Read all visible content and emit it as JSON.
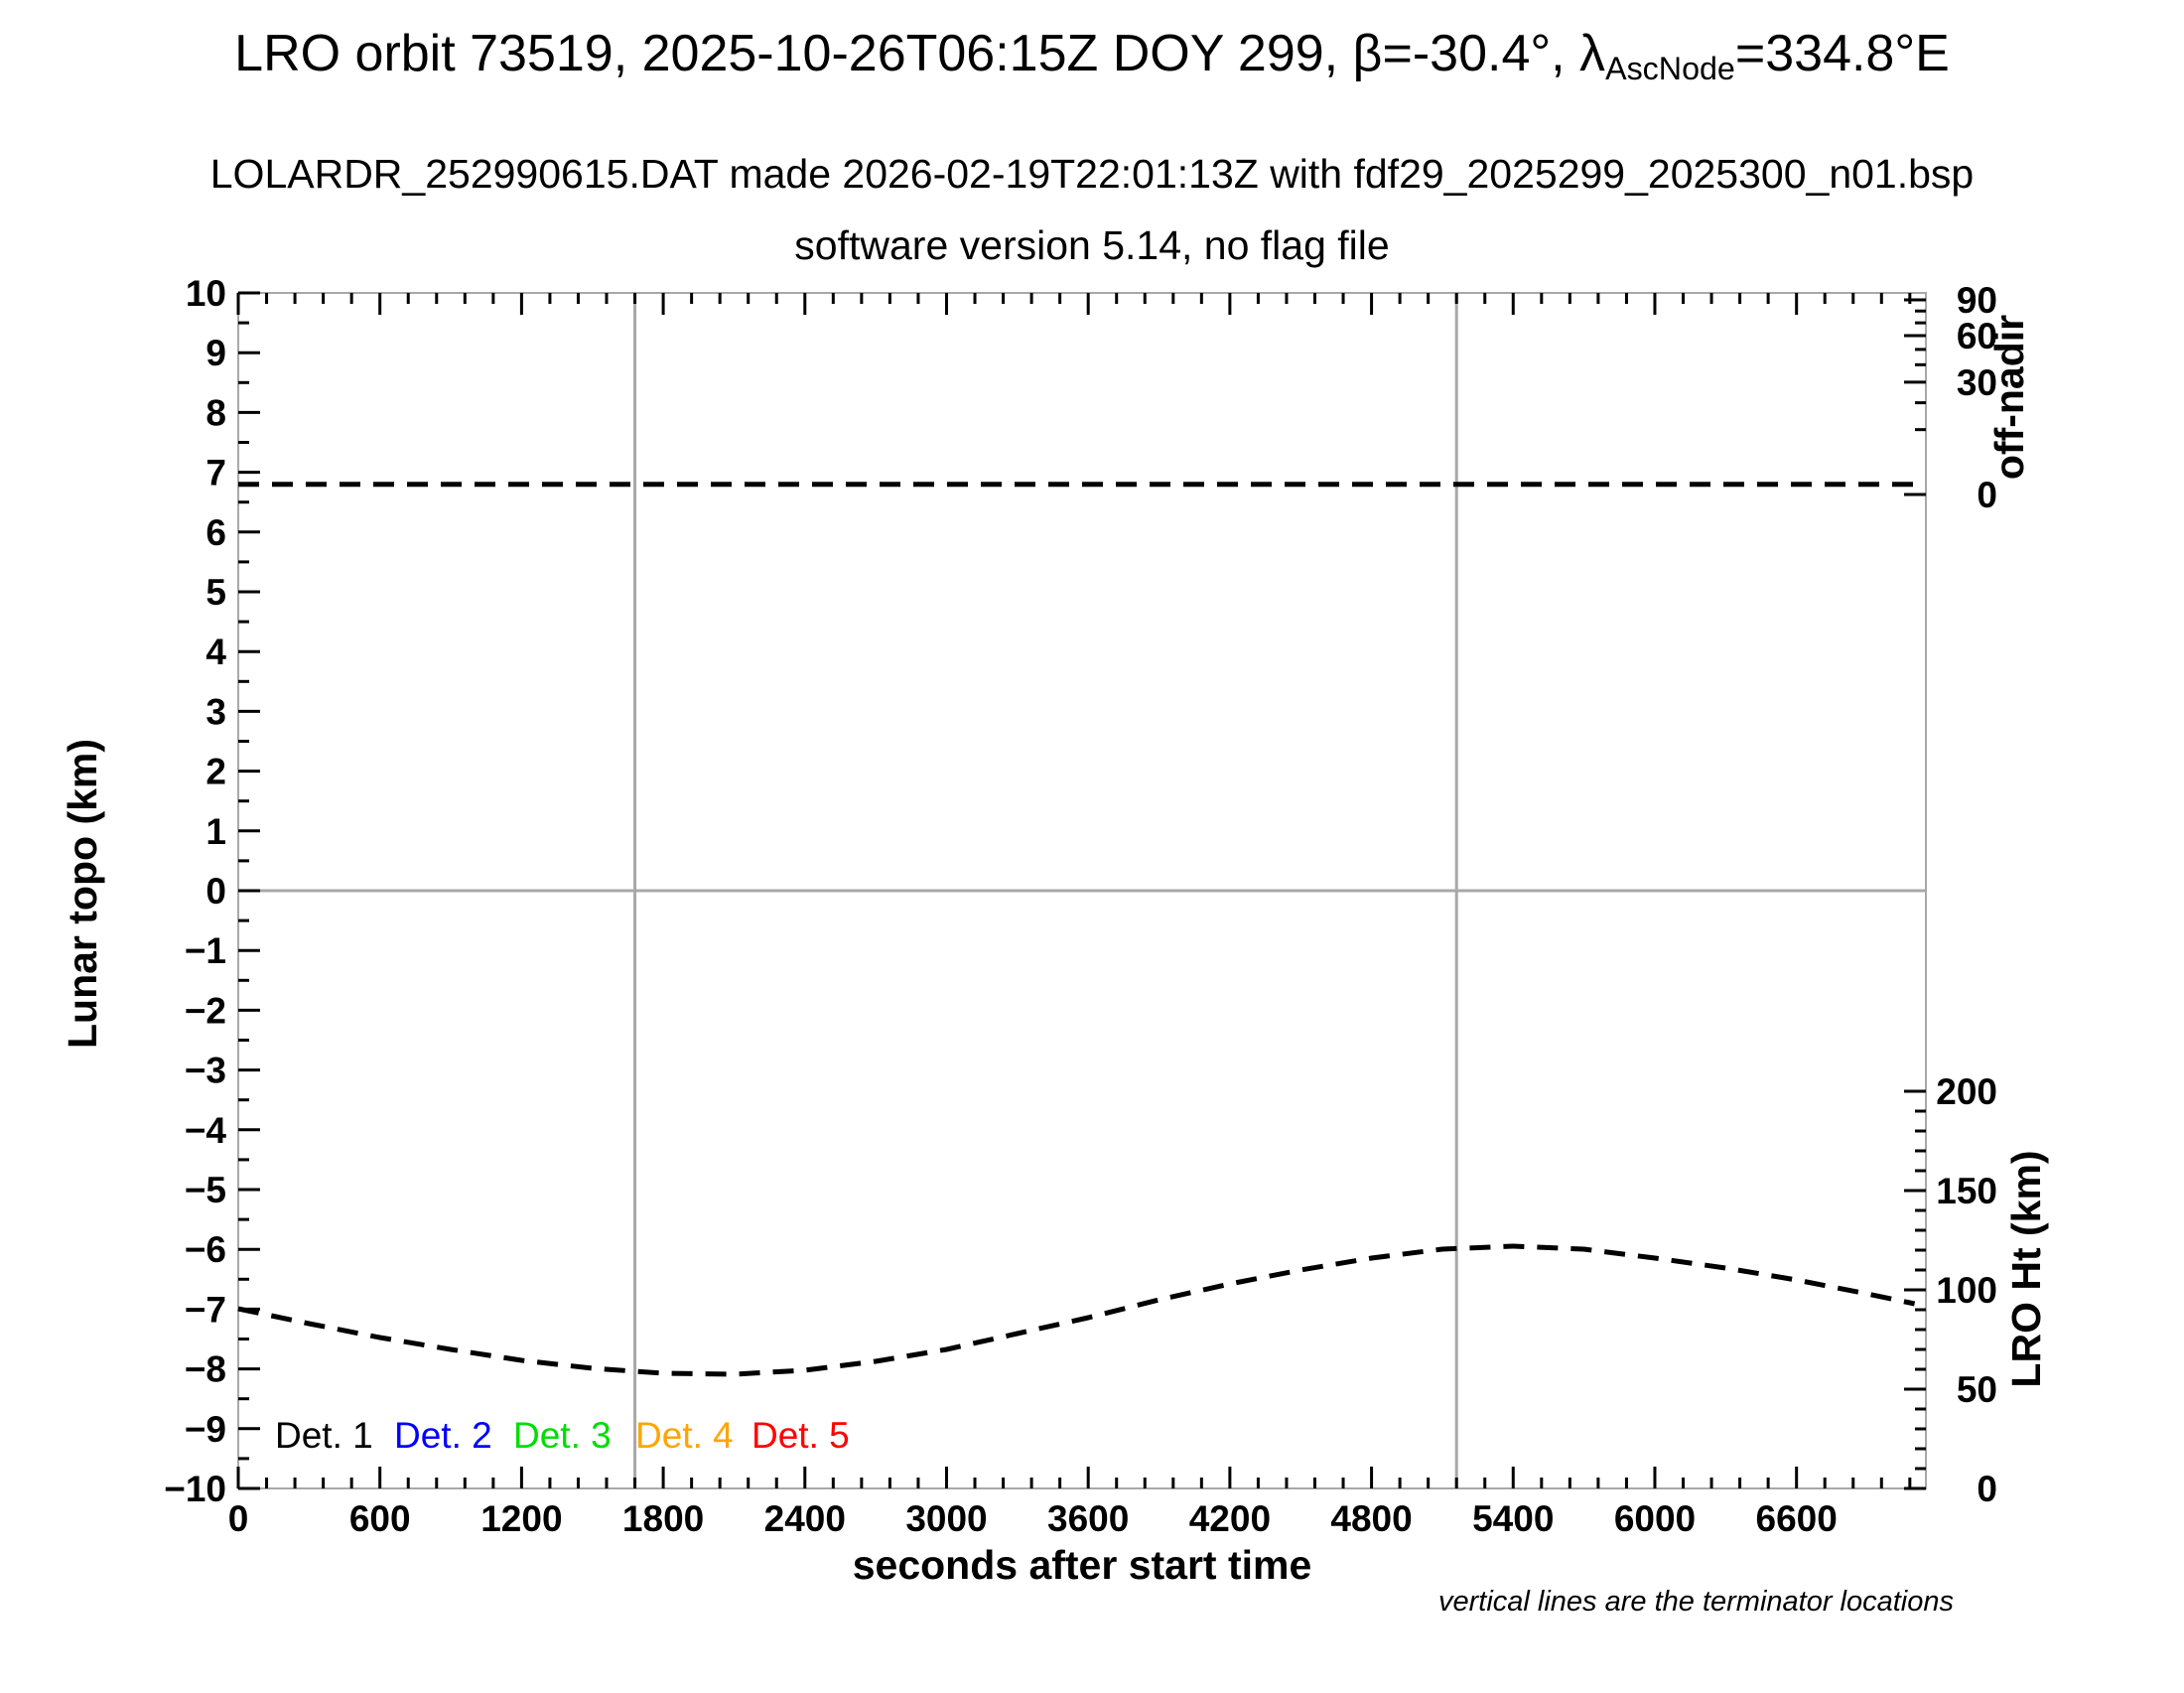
{
  "header": {
    "title_prefix": "LRO orbit 73519, 2025-10-26T06:15Z DOY 299, β=-30.4°, λ",
    "title_subscript": "AscNode",
    "title_suffix": "=334.8°E",
    "subtitle_file": "LOLARDR_252990615.DAT made 2026-02-19T22:01:13Z with fdf29_2025299_2025300_n01.bsp",
    "subtitle_version": "software version 5.14, no flag file"
  },
  "chart_data": {
    "type": "line",
    "title": "LRO orbit 73519, 2025-10-26T06:15Z DOY 299, β=-30.4°, λAscNode=334.8°E",
    "x_axis": {
      "label": "seconds after start time",
      "range": [
        0,
        7148
      ],
      "major_tick_interval": 600,
      "minor_tick_interval": 120,
      "tick_labels": [
        0,
        600,
        1200,
        1800,
        2400,
        3000,
        3600,
        4200,
        4800,
        5400,
        6000,
        6600
      ]
    },
    "y_axis_left": {
      "label": "Lunar topo (km)",
      "range": [
        -10,
        10
      ],
      "major_tick_interval": 1,
      "minor_tick_interval": 0.5
    },
    "y_axis_right_top": {
      "label": "off-nadir",
      "unit": "degrees",
      "scale": "sqrt",
      "range": [
        0,
        90
      ],
      "major_ticks": [
        0,
        30,
        60,
        90
      ],
      "minor_ticks": [
        10,
        20,
        40,
        50,
        70,
        80
      ]
    },
    "y_axis_right_bottom": {
      "label": "LRO Ht (km)",
      "range": [
        0,
        200
      ],
      "major_tick_interval": 50,
      "minor_tick_interval": 10
    },
    "zero_topo_gridline": 0,
    "terminator_lines_seconds": [
      1680,
      5160
    ],
    "gridline_color": "#a8a8a8",
    "series": [
      {
        "name": "off-nadir angle",
        "axis": "off-nadir",
        "style": "dashed",
        "color": "#000000",
        "points": [
          [
            0,
            0.25
          ],
          [
            7148,
            0.25
          ]
        ]
      },
      {
        "name": "LRO height",
        "axis": "lro-ht",
        "style": "dashed",
        "color": "#000000",
        "points": [
          [
            0,
            90.5
          ],
          [
            300,
            83
          ],
          [
            600,
            76
          ],
          [
            900,
            70
          ],
          [
            1200,
            64.5
          ],
          [
            1500,
            60.5
          ],
          [
            1800,
            58
          ],
          [
            2100,
            57.5
          ],
          [
            2400,
            59.5
          ],
          [
            2700,
            64
          ],
          [
            3000,
            70
          ],
          [
            3300,
            78
          ],
          [
            3600,
            86
          ],
          [
            3900,
            95
          ],
          [
            4200,
            103
          ],
          [
            4500,
            110
          ],
          [
            4800,
            116
          ],
          [
            5100,
            120.5
          ],
          [
            5400,
            122
          ],
          [
            5700,
            120.5
          ],
          [
            6000,
            116
          ],
          [
            6300,
            111
          ],
          [
            6600,
            105
          ],
          [
            6900,
            98
          ],
          [
            7100,
            93
          ]
        ]
      }
    ],
    "legend": [
      {
        "label": "Det. 1",
        "color": "#000000"
      },
      {
        "label": "Det. 2",
        "color": "#0000ff"
      },
      {
        "label": "Det. 3",
        "color": "#00dd00"
      },
      {
        "label": "Det. 4",
        "color": "#ffa500"
      },
      {
        "label": "Det. 5",
        "color": "#ff0000"
      }
    ],
    "footnote": "vertical lines are the terminator locations"
  }
}
